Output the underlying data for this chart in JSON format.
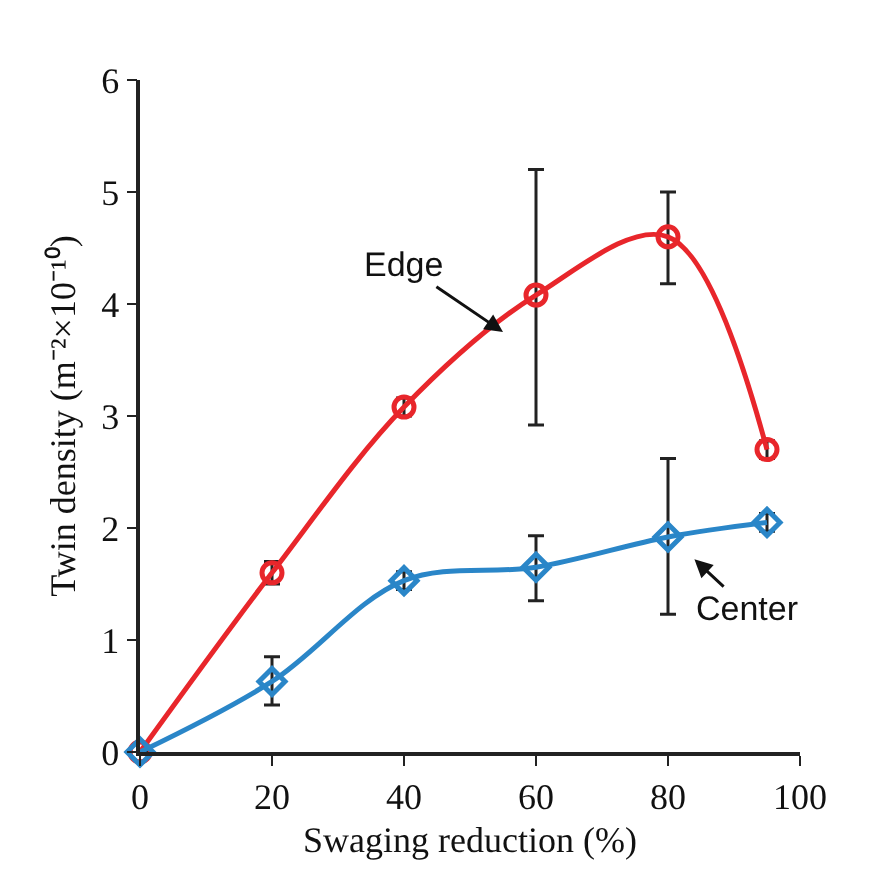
{
  "chart_data": {
    "type": "line",
    "xlabel": "Swaging reduction (%)",
    "ylabel": "Twin density (m⁻²×10⁻¹⁰)",
    "x": [
      0,
      20,
      40,
      60,
      80,
      95
    ],
    "series": [
      {
        "name": "Edge",
        "color": "#e8262b",
        "marker": "circle",
        "values": [
          0,
          1.6,
          3.08,
          4.08,
          4.6,
          2.7
        ],
        "errors": [
          null,
          0.1,
          0.08,
          [
            2.92,
            5.2
          ],
          [
            4.18,
            5.0
          ],
          0.08
        ]
      },
      {
        "name": "Center",
        "color": "#2a86c8",
        "marker": "diamond",
        "values": [
          0,
          0.63,
          1.53,
          1.65,
          1.92,
          2.05
        ],
        "errors": [
          null,
          [
            0.42,
            0.85
          ],
          0.08,
          [
            1.35,
            1.93
          ],
          [
            1.23,
            2.62
          ],
          0.08
        ]
      }
    ],
    "xlim": [
      0,
      100
    ],
    "xticks": [
      0,
      20,
      40,
      60,
      80,
      100
    ],
    "ylim": [
      0,
      6
    ],
    "yticks": [
      0,
      1,
      2,
      3,
      4,
      5,
      6
    ],
    "grid": false,
    "legend": false,
    "line_style": "solid"
  }
}
